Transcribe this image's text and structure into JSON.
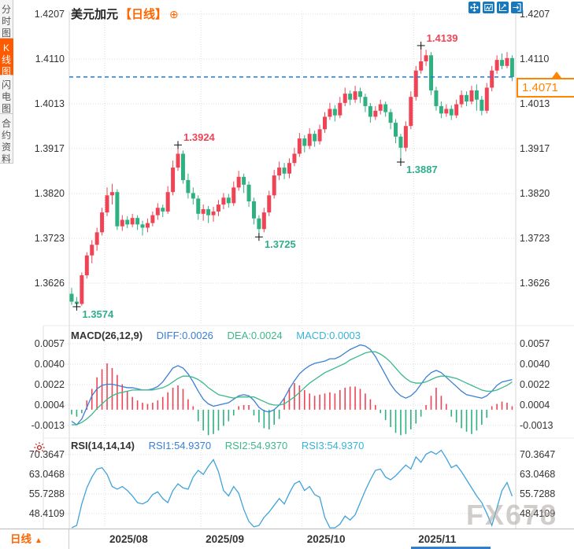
{
  "header": {
    "symbol": "美元加元",
    "period_tag": "【日线】",
    "expand_glyph": "⊕"
  },
  "sidebar": {
    "tabs": [
      {
        "label": "分时图",
        "active": false
      },
      {
        "label": "K线图",
        "active": true
      },
      {
        "label": "闪电图",
        "active": false
      },
      {
        "label": "合约资料",
        "active": false
      }
    ]
  },
  "toolbar": {
    "icons": [
      "move-icon",
      "box-zoom-icon",
      "axis-scale-icon",
      "pan-right-icon"
    ]
  },
  "price_box": {
    "value": "1.4071"
  },
  "bottom_bar": {
    "period_label": "日线",
    "arrow_glyph": "▲"
  },
  "watermark": {
    "text": "FX678"
  },
  "colors": {
    "up_red": "#ee4456",
    "down_green": "#2fb080",
    "accent_orange": "#ff6600",
    "diff_blue": "#3a7fd5",
    "dea_green": "#3cb88a",
    "macd_cyan": "#39b3d7",
    "rsi_line": "#3fa3d9",
    "current_price_line": "#1b7ce0",
    "toolbar_blue": "#1878bc",
    "grid": "#dcdcdc",
    "watermark_gray": "#b2ada7"
  },
  "chart_data": {
    "type": "candlestick",
    "title": "美元加元 日线",
    "x_labels": [
      "2025/08",
      "2025/09",
      "2025/10",
      "2025/11"
    ],
    "month_tick_indices": [
      7,
      26,
      46,
      68
    ],
    "panels": [
      {
        "name": "price",
        "y_ticks": [
          "1.4207",
          "1.4110",
          "1.4013",
          "1.3917",
          "1.3820",
          "1.3723",
          "1.3626"
        ],
        "ylim": [
          1.3537,
          1.4214
        ],
        "current_price": "1.4071",
        "current_price_value": 1.4071,
        "annotations": [
          {
            "text": "1.3574",
            "price": 1.3574,
            "index": 1,
            "type": "low"
          },
          {
            "text": "1.3924",
            "price": 1.3924,
            "index": 21,
            "type": "high"
          },
          {
            "text": "1.3725",
            "price": 1.3725,
            "index": 37,
            "type": "low"
          },
          {
            "text": "1.3887",
            "price": 1.3887,
            "index": 65,
            "type": "low"
          },
          {
            "text": "1.4139",
            "price": 1.4139,
            "index": 69,
            "type": "high"
          }
        ],
        "candles": [
          [
            1.3602,
            1.3615,
            1.3578,
            1.3585
          ],
          [
            1.3585,
            1.3595,
            1.3574,
            1.358
          ],
          [
            1.358,
            1.3648,
            1.3576,
            1.3642
          ],
          [
            1.3642,
            1.3692,
            1.3635,
            1.3685
          ],
          [
            1.3685,
            1.3718,
            1.3668,
            1.3708
          ],
          [
            1.3708,
            1.3745,
            1.3695,
            1.3735
          ],
          [
            1.3735,
            1.3788,
            1.3728,
            1.3778
          ],
          [
            1.3778,
            1.3832,
            1.377,
            1.3815
          ],
          [
            1.3815,
            1.384,
            1.3795,
            1.3822
          ],
          [
            1.3822,
            1.3828,
            1.374,
            1.3748
          ],
          [
            1.3748,
            1.3772,
            1.3738,
            1.3762
          ],
          [
            1.3762,
            1.377,
            1.3744,
            1.3752
          ],
          [
            1.3752,
            1.3775,
            1.3746,
            1.3766
          ],
          [
            1.3766,
            1.3772,
            1.374,
            1.3752
          ],
          [
            1.3752,
            1.376,
            1.3728,
            1.3745
          ],
          [
            1.3745,
            1.3765,
            1.3735,
            1.3755
          ],
          [
            1.3755,
            1.378,
            1.3748,
            1.3772
          ],
          [
            1.3772,
            1.3798,
            1.3762,
            1.3788
          ],
          [
            1.3788,
            1.3795,
            1.3768,
            1.378
          ],
          [
            1.378,
            1.3835,
            1.3775,
            1.3822
          ],
          [
            1.3822,
            1.389,
            1.3815,
            1.3875
          ],
          [
            1.3875,
            1.3924,
            1.3868,
            1.3905
          ],
          [
            1.3905,
            1.3912,
            1.384,
            1.3848
          ],
          [
            1.3848,
            1.3862,
            1.3808,
            1.382
          ],
          [
            1.382,
            1.3832,
            1.3795,
            1.3808
          ],
          [
            1.3808,
            1.3815,
            1.3762,
            1.3775
          ],
          [
            1.3775,
            1.3795,
            1.376,
            1.3785
          ],
          [
            1.3785,
            1.3792,
            1.3755,
            1.3772
          ],
          [
            1.3772,
            1.379,
            1.3758,
            1.378
          ],
          [
            1.378,
            1.3805,
            1.377,
            1.3795
          ],
          [
            1.3795,
            1.382,
            1.3785,
            1.381
          ],
          [
            1.381,
            1.3818,
            1.3788,
            1.3798
          ],
          [
            1.3798,
            1.3845,
            1.3792,
            1.3832
          ],
          [
            1.3832,
            1.3868,
            1.3825,
            1.3855
          ],
          [
            1.3855,
            1.3862,
            1.382,
            1.3838
          ],
          [
            1.3838,
            1.3845,
            1.379,
            1.3802
          ],
          [
            1.3802,
            1.381,
            1.3752,
            1.3765
          ],
          [
            1.3765,
            1.3772,
            1.3725,
            1.3742
          ],
          [
            1.3742,
            1.3788,
            1.3735,
            1.3778
          ],
          [
            1.3778,
            1.3825,
            1.377,
            1.3815
          ],
          [
            1.3815,
            1.387,
            1.3808,
            1.3858
          ],
          [
            1.3858,
            1.3888,
            1.3848,
            1.3875
          ],
          [
            1.3875,
            1.3885,
            1.385,
            1.3862
          ],
          [
            1.3862,
            1.3895,
            1.3852,
            1.3885
          ],
          [
            1.3885,
            1.3918,
            1.3878,
            1.3905
          ],
          [
            1.3905,
            1.395,
            1.3898,
            1.3938
          ],
          [
            1.3938,
            1.3945,
            1.3908,
            1.3922
          ],
          [
            1.3922,
            1.396,
            1.3915,
            1.3948
          ],
          [
            1.3948,
            1.3955,
            1.392,
            1.3932
          ],
          [
            1.3932,
            1.3968,
            1.3925,
            1.3958
          ],
          [
            1.3958,
            1.3995,
            1.395,
            1.3985
          ],
          [
            1.3985,
            1.4015,
            1.3978,
            1.4002
          ],
          [
            1.4002,
            1.401,
            1.3975,
            1.3988
          ],
          [
            1.3988,
            1.4028,
            1.3982,
            1.4015
          ],
          [
            1.4015,
            1.4048,
            1.4008,
            1.4035
          ],
          [
            1.4035,
            1.4042,
            1.401,
            1.4022
          ],
          [
            1.4022,
            1.4052,
            1.4015,
            1.404
          ],
          [
            1.404,
            1.4048,
            1.4015,
            1.4028
          ],
          [
            1.4028,
            1.4035,
            1.3995,
            1.4008
          ],
          [
            1.4008,
            1.4015,
            1.3972,
            1.3985
          ],
          [
            1.3985,
            1.4008,
            1.3978,
            1.3998
          ],
          [
            1.3998,
            1.4022,
            1.399,
            1.4012
          ],
          [
            1.4012,
            1.4018,
            1.3985,
            1.3995
          ],
          [
            1.3995,
            1.4002,
            1.3958,
            1.3972
          ],
          [
            1.3972,
            1.398,
            1.3928,
            1.3942
          ],
          [
            1.3942,
            1.3948,
            1.3887,
            1.3918
          ],
          [
            1.3918,
            1.3975,
            1.391,
            1.3965
          ],
          [
            1.3965,
            1.404,
            1.3958,
            1.4028
          ],
          [
            1.4028,
            1.4095,
            1.402,
            1.4085
          ],
          [
            1.4085,
            1.4139,
            1.4078,
            1.4105
          ],
          [
            1.4105,
            1.413,
            1.4095,
            1.4118
          ],
          [
            1.4118,
            1.4125,
            1.4032,
            1.4042
          ],
          [
            1.4042,
            1.405,
            1.3998,
            1.4008
          ],
          [
            1.4008,
            1.4018,
            1.3982,
            1.3992
          ],
          [
            1.3992,
            1.4012,
            1.3985,
            1.4002
          ],
          [
            1.4002,
            1.401,
            1.3978,
            1.3988
          ],
          [
            1.3988,
            1.4022,
            1.3982,
            1.4012
          ],
          [
            1.4012,
            1.4042,
            1.4005,
            1.4032
          ],
          [
            1.4032,
            1.404,
            1.4008,
            1.4018
          ],
          [
            1.4018,
            1.4052,
            1.4012,
            1.4042
          ],
          [
            1.4042,
            1.4055,
            1.3998,
            1.4022
          ],
          [
            1.4022,
            1.403,
            1.3988,
            1.3998
          ],
          [
            1.3998,
            1.4058,
            1.3992,
            1.4048
          ],
          [
            1.4048,
            1.4095,
            1.404,
            1.4085
          ],
          [
            1.4085,
            1.4118,
            1.4078,
            1.4108
          ],
          [
            1.4108,
            1.4122,
            1.4088,
            1.4095
          ],
          [
            1.4095,
            1.4125,
            1.409,
            1.4112
          ],
          [
            1.4112,
            1.4118,
            1.4062,
            1.4071
          ]
        ]
      },
      {
        "name": "macd",
        "title": "MACD(26,12,9)",
        "legend": [
          "DIFF:0.0026",
          "DEA:0.0024",
          "MACD:0.0003"
        ],
        "y_ticks": [
          "0.0057",
          "0.0040",
          "0.0022",
          "0.0004",
          "-0.0013"
        ],
        "diff": [
          -0.001,
          -0.0013,
          -0.0008,
          0.0002,
          0.0012,
          0.0018,
          0.0021,
          0.0022,
          0.0022,
          0.0021,
          0.002,
          0.0019,
          0.0019,
          0.0018,
          0.0017,
          0.0017,
          0.0018,
          0.002,
          0.0024,
          0.003,
          0.0036,
          0.0038,
          0.0036,
          0.0031,
          0.0024,
          0.0016,
          0.0009,
          0.0005,
          0.0003,
          0.0004,
          0.0005,
          0.0006,
          0.0009,
          0.0012,
          0.0013,
          0.0012,
          0.0008,
          0.0002,
          -0.0001,
          -0.0002,
          0.0,
          0.0004,
          0.001,
          0.0018,
          0.0025,
          0.0031,
          0.0035,
          0.0038,
          0.004,
          0.0041,
          0.0042,
          0.0044,
          0.0044,
          0.0046,
          0.0049,
          0.0052,
          0.0054,
          0.0056,
          0.0055,
          0.0052,
          0.0046,
          0.0038,
          0.003,
          0.0022,
          0.0016,
          0.0012,
          0.001,
          0.0012,
          0.0016,
          0.0022,
          0.0028,
          0.0032,
          0.0034,
          0.0032,
          0.0028,
          0.0024,
          0.002,
          0.0016,
          0.0013,
          0.0012,
          0.0011,
          0.001,
          0.0012,
          0.0016,
          0.0021,
          0.0024,
          0.0025,
          0.0026
        ],
        "dea": [
          -0.0013,
          -0.0013,
          -0.0011,
          -0.0008,
          -0.0004,
          0.0001,
          0.0005,
          0.0009,
          0.0012,
          0.0014,
          0.0015,
          0.0016,
          0.0017,
          0.0017,
          0.0017,
          0.0017,
          0.0017,
          0.0018,
          0.0019,
          0.0021,
          0.0024,
          0.0027,
          0.0029,
          0.0029,
          0.0028,
          0.0026,
          0.0023,
          0.0019,
          0.0016,
          0.0013,
          0.0012,
          0.0011,
          0.001,
          0.0011,
          0.0011,
          0.0011,
          0.0011,
          0.0009,
          0.0007,
          0.0005,
          0.0004,
          0.0004,
          0.0005,
          0.0008,
          0.0011,
          0.0015,
          0.0019,
          0.0023,
          0.0026,
          0.0029,
          0.0032,
          0.0034,
          0.0036,
          0.0038,
          0.004,
          0.0043,
          0.0045,
          0.0047,
          0.0049,
          0.005,
          0.005,
          0.0048,
          0.0045,
          0.0041,
          0.0036,
          0.0031,
          0.0027,
          0.0024,
          0.0023,
          0.0023,
          0.0024,
          0.0026,
          0.0028,
          0.0029,
          0.0029,
          0.0028,
          0.0027,
          0.0025,
          0.0023,
          0.0021,
          0.0019,
          0.0017,
          0.0016,
          0.0016,
          0.0017,
          0.0019,
          0.0021,
          0.0024
        ],
        "hist": [
          -0.0004,
          -0.0006,
          -0.0003,
          0.0008,
          0.0018,
          0.0028,
          0.0035,
          0.004,
          0.0036,
          0.003,
          0.0022,
          0.0016,
          0.0011,
          0.0008,
          0.0006,
          0.0005,
          0.0006,
          0.0008,
          0.0011,
          0.0015,
          0.0019,
          0.0021,
          0.0018,
          0.0009,
          0.0003,
          -0.001,
          -0.0018,
          -0.0022,
          -0.0021,
          -0.0018,
          -0.0014,
          -0.001,
          -0.0005,
          0.0003,
          0.0004,
          0.0004,
          -0.0005,
          -0.0011,
          -0.0016,
          -0.0017,
          -0.0013,
          -0.0008,
          0.001,
          0.0019,
          0.0023,
          0.0021,
          0.0017,
          0.0014,
          0.0012,
          0.0013,
          0.0014,
          0.0015,
          0.0014,
          0.0017,
          0.0019,
          0.002,
          0.002,
          0.0018,
          0.0014,
          0.0009,
          0.0004,
          -0.0003,
          -0.0009,
          -0.0015,
          -0.002,
          -0.0022,
          -0.0021,
          -0.0017,
          -0.0012,
          -0.0006,
          0.0004,
          0.0012,
          0.0019,
          0.0012,
          0.0005,
          -0.0006,
          -0.0011,
          -0.0016,
          -0.0019,
          -0.0021,
          -0.0018,
          -0.0013,
          -0.0007,
          0.0003,
          0.0005,
          0.0007,
          0.0006,
          0.0003
        ]
      },
      {
        "name": "rsi",
        "title": "RSI(14,14,14)",
        "legend": [
          "RSI1:54.9370",
          "RSI2:54.9370",
          "RSI3:54.9370"
        ],
        "y_ticks": [
          "70.3647",
          "63.0468",
          "55.7288",
          "48.4109"
        ],
        "rsi": [
          40.0,
          44.0,
          52.0,
          58.0,
          62.0,
          65.0,
          65.5,
          63.0,
          58.5,
          57.5,
          58.5,
          57.0,
          55.0,
          52.5,
          52.0,
          53.0,
          55.5,
          56.5,
          54.0,
          52.5,
          57.0,
          59.5,
          58.0,
          57.5,
          62.0,
          64.5,
          63.0,
          66.0,
          68.5,
          64.0,
          57.0,
          55.0,
          58.5,
          56.0,
          50.0,
          45.5,
          43.5,
          44.0,
          47.0,
          49.0,
          51.5,
          54.0,
          52.0,
          56.0,
          59.5,
          60.5,
          57.0,
          58.5,
          55.5,
          54.5,
          47.0,
          42.0,
          40.5,
          44.5,
          47.5,
          46.0,
          48.0,
          52.5,
          57.0,
          61.0,
          64.5,
          65.0,
          62.0,
          61.0,
          62.5,
          64.5,
          66.5,
          65.0,
          69.5,
          67.5,
          70.5,
          71.5,
          70.5,
          72.0,
          69.0,
          65.5,
          66.5,
          64.0,
          61.0,
          58.0,
          55.0,
          52.5,
          48.5,
          44.0,
          50.5,
          57.0,
          60.0,
          54.9
        ]
      }
    ]
  }
}
